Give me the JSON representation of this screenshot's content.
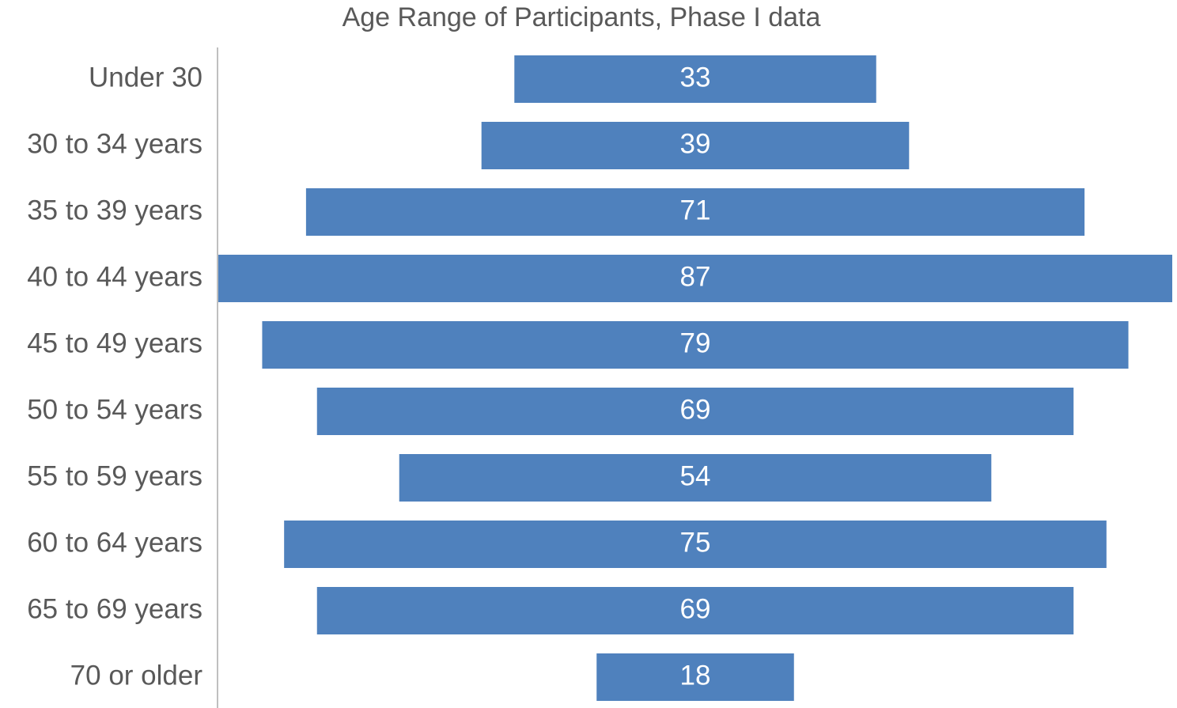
{
  "chart_data": {
    "type": "funnel",
    "title": "Age Range of Participants, Phase I data",
    "categories": [
      "Under 30",
      "30 to 34 years",
      "35 to 39 years",
      "40 to 44 years",
      "45 to 49 years",
      "50 to 54 years",
      "55 to 59 years",
      "60 to 64 years",
      "65 to 69 years",
      "70 or older"
    ],
    "values": [
      33,
      39,
      71,
      87,
      79,
      69,
      54,
      75,
      69,
      18
    ],
    "color": "#4f81bd"
  }
}
